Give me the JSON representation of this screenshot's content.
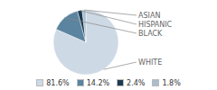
{
  "chart_data": {
    "type": "pie",
    "categories": [
      "WHITE",
      "BLACK",
      "HISPANIC",
      "ASIAN"
    ],
    "values": [
      81.6,
      14.2,
      2.4,
      1.8
    ],
    "value_labels": [
      "81.6%",
      "14.2%",
      "2.4%",
      "1.8%"
    ],
    "colors": [
      "#cdd9e5",
      "#5a84a0",
      "#1c3a52",
      "#a8bfcc"
    ],
    "legend": "bottom"
  }
}
